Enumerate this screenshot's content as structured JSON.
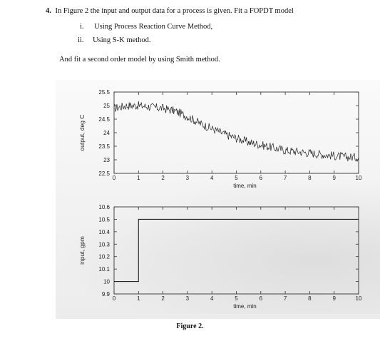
{
  "question": {
    "number": "4.",
    "text": "In Figure 2 the input and output data for a process is given. Fit a FOPDT model",
    "items": [
      {
        "marker": "i.",
        "text": "Using Process Reaction Curve Method,"
      },
      {
        "marker": "ii.",
        "text": "Using S-K method."
      }
    ],
    "followup": "And fit a second order model by using Smith method."
  },
  "figure_caption": "Figure 2.",
  "chart_data": [
    {
      "type": "line",
      "title": "",
      "xlabel": "time, min",
      "ylabel": "output, deg C",
      "xlim": [
        0,
        10
      ],
      "ylim": [
        22.5,
        25.5
      ],
      "x_ticks": [
        "0",
        "1",
        "2",
        "3",
        "4",
        "5",
        "6",
        "7",
        "8",
        "9",
        "10"
      ],
      "y_ticks": [
        "22.5",
        "23",
        "23.5",
        "24",
        "24.5",
        "25",
        "25.5"
      ],
      "grid": false,
      "series": [
        {
          "x": [
            0,
            0.5,
            1,
            1.5,
            2,
            2.5,
            3,
            3.5,
            4,
            4.5,
            5,
            5.5,
            6,
            6.5,
            7,
            7.5,
            8,
            8.5,
            9,
            9.5,
            10
          ],
          "values": [
            24.9,
            25.0,
            25.0,
            24.95,
            24.9,
            24.8,
            24.6,
            24.35,
            24.15,
            23.95,
            23.8,
            23.65,
            23.55,
            23.45,
            23.35,
            23.3,
            23.25,
            23.2,
            23.15,
            23.1,
            23.1
          ]
        }
      ]
    },
    {
      "type": "line",
      "title": "",
      "xlabel": "time, min",
      "ylabel": "input, gpm",
      "xlim": [
        0,
        10
      ],
      "ylim": [
        9.9,
        10.6
      ],
      "x_ticks": [
        "0",
        "1",
        "2",
        "3",
        "4",
        "5",
        "6",
        "7",
        "8",
        "9",
        "10"
      ],
      "y_ticks": [
        "9.9",
        "10",
        "10.1",
        "10.2",
        "10.3",
        "10.4",
        "10.5",
        "10.6"
      ],
      "grid": false,
      "series": [
        {
          "x": [
            0,
            1,
            1,
            10
          ],
          "values": [
            10.0,
            10.0,
            10.5,
            10.5
          ]
        }
      ]
    }
  ]
}
